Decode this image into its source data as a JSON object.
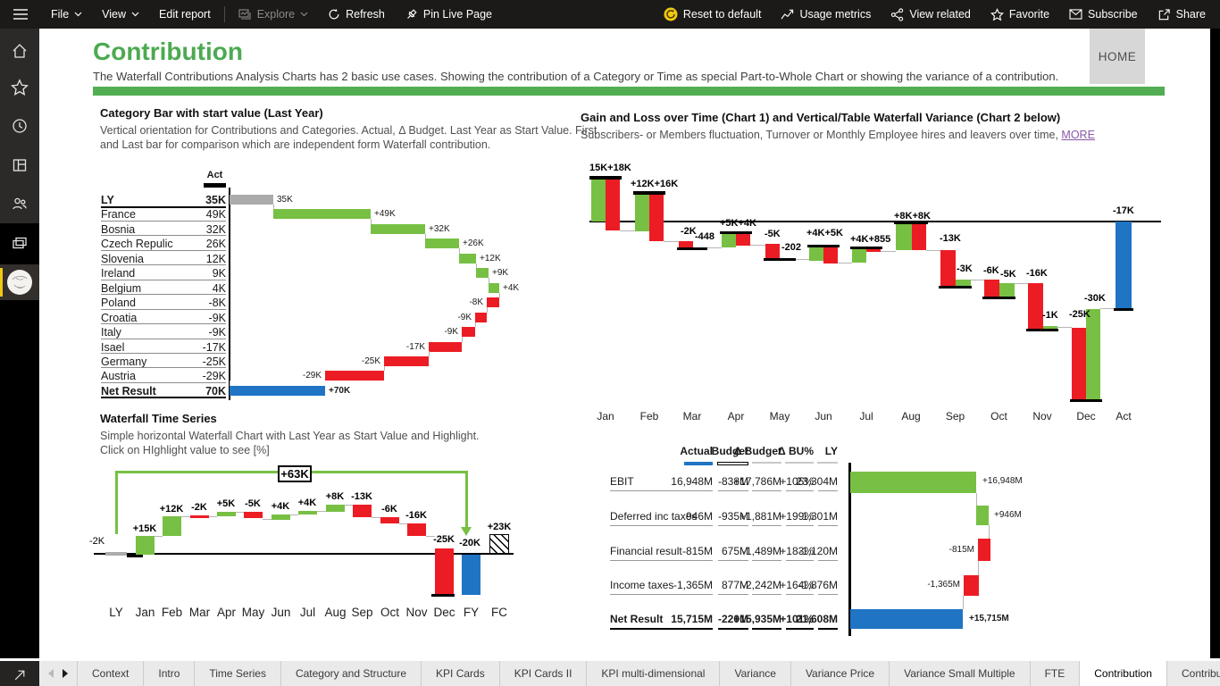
{
  "toolbar": {
    "file_label": "File",
    "view_label": "View",
    "edit_label": "Edit report",
    "explore_label": "Explore",
    "refresh_label": "Refresh",
    "pin_label": "Pin Live Page",
    "reset_label": "Reset to default",
    "usage_label": "Usage metrics",
    "related_label": "View related",
    "favorite_label": "Favorite",
    "subscribe_label": "Subscribe",
    "share_label": "Share"
  },
  "header": {
    "title": "Contribution",
    "subtitle": "The Waterfall Contributions Analysis Charts has 2 basic use cases. Showing the contribution of a Category or Time as special Part-to-Whole Chart or showing the variance of a contribution.",
    "home_label": "HOME"
  },
  "colors": {
    "green": "#77c043",
    "red": "#ec1c24",
    "blue": "#1f74c4",
    "gray": "#ababab",
    "accent_green": "#4caa50",
    "divider_green": "#52ae52",
    "yellow": "#f2c811",
    "link_purple": "#8a57a8"
  },
  "panels": {
    "category": {
      "title": "Category Bar with start value (Last Year)",
      "subtitle1": "Vertical orientation for Contributions and Categories. Actual, Δ Budget. Last Year as Start Value. First",
      "subtitle2": "and Last bar for comparison which are independent form Waterfall contribution.",
      "col_header": "Act"
    },
    "gainloss": {
      "title": "Gain and Loss over Time (Chart 1) and Vertical/Table Waterfall Variance (Chart 2 below)",
      "subtitle": "Subscribers- or Members fluctuation, Turnover or Monthly Employee hires and leavers over time, ",
      "more_label": "MORE"
    },
    "timeseries": {
      "title": "Waterfall Time Series",
      "subtitle1": "Simple horizontal Waterfall Chart with Last Year as Start Value and Highlight.",
      "subtitle2": "Click on HIghlight value to see [%]"
    }
  },
  "chart_data": [
    {
      "id": "category_waterfall",
      "type": "bar",
      "title": "Category Bar with start value (Last Year)",
      "categories": [
        "LY",
        "France",
        "Bosnia",
        "Czech Repulic",
        "Slovenia",
        "Ireland",
        "Belgium",
        "Poland",
        "Croatia",
        "Italy",
        "Isael",
        "Germany",
        "Austria",
        "Net Result"
      ],
      "values": [
        35,
        49,
        32,
        26,
        12,
        9,
        4,
        -8,
        -9,
        -9,
        -17,
        -25,
        -29,
        70
      ],
      "value_labels": [
        "35K",
        "49K",
        "32K",
        "26K",
        "12K",
        "9K",
        "4K",
        "-8K",
        "-9K",
        "-9K",
        "-17K",
        "-25K",
        "-29K",
        "70K"
      ],
      "bar_labels": [
        "35K",
        "+49K",
        "+32K",
        "+26K",
        "+12K",
        "+9K",
        "+4K",
        "-8K",
        "-9K",
        "-9K",
        "-17K",
        "-25K",
        "-29K",
        "+70K"
      ],
      "bar_colors": [
        "gray",
        "green",
        "green",
        "green",
        "green",
        "green",
        "green",
        "red",
        "red",
        "red",
        "red",
        "red",
        "red",
        "blue"
      ],
      "bold_rows": [
        0,
        13
      ],
      "col_header": "Act"
    },
    {
      "id": "gain_loss_monthly",
      "type": "waterfall-pairs",
      "months": [
        "Jan",
        "Feb",
        "Mar",
        "Apr",
        "May",
        "Jun",
        "Jul",
        "Aug",
        "Sep",
        "Oct",
        "Nov",
        "Dec",
        "Act"
      ],
      "labels": [
        [
          "15K+18K"
        ],
        [
          "+12K+16K"
        ],
        [
          "-2K",
          "-448"
        ],
        [
          "+5K+4K"
        ],
        [
          "-5K",
          "-202"
        ],
        [
          "+4K+5K"
        ],
        [
          "+4K+855"
        ],
        [
          "+8K+8K"
        ],
        [
          "-13K",
          "-3K"
        ],
        [
          "-6K",
          "-5K"
        ],
        [
          "-16K",
          "-1K"
        ],
        [
          "-25K",
          "-30K"
        ],
        [
          "-17K"
        ]
      ]
    },
    {
      "id": "time_series_waterfall",
      "type": "waterfall",
      "categories": [
        "LY",
        "Jan",
        "Feb",
        "Mar",
        "Apr",
        "May",
        "Jun",
        "Jul",
        "Aug",
        "Sep",
        "Oct",
        "Nov",
        "Dec",
        "FY",
        "FC"
      ],
      "values": [
        -2,
        15,
        12,
        -2,
        5,
        -5,
        4,
        4,
        8,
        -13,
        -6,
        -16,
        -25,
        -20,
        23
      ],
      "bar_labels": [
        "",
        "+15K",
        "+12K",
        "-2K",
        "+5K",
        "-5K",
        "+4K",
        "+4K",
        "+8K",
        "-13K",
        "-6K",
        "-16K",
        "-25K",
        "-20K",
        "+23K"
      ],
      "start_label": "-2K",
      "bridge_label": "+63K"
    },
    {
      "id": "variance_table",
      "type": "table",
      "columns": [
        "Actual",
        "Budget",
        "Δ Budget",
        "Δ BU%",
        "LY"
      ],
      "rows": [
        {
          "label": "EBIT",
          "actual": "16,948M",
          "budget": "-838M",
          "d_budget": "+17,786M",
          "d_bu": "+105%",
          "ly": "23,304M",
          "bold": false
        },
        {
          "label": "Deferred inc taxes",
          "actual": "946M",
          "budget": "-935M",
          "d_budget": "+1,881M",
          "d_bu": "+199%",
          "ly": "1,301M",
          "bold": false
        },
        {
          "label": "Financial result",
          "actual": "-815M",
          "budget": "675M",
          "d_budget": "-1,489M",
          "d_bu": "+183%",
          "ly": "-1,120M",
          "bold": false
        },
        {
          "label": "Income taxes",
          "actual": "-1,365M",
          "budget": "877M",
          "d_budget": "-2,242M",
          "d_bu": "+164%",
          "ly": "-1,876M",
          "bold": false
        },
        {
          "label": "Net Result",
          "actual": "15,715M",
          "budget": "-220M",
          "d_budget": "+15,935M",
          "d_bu": "+101%",
          "ly": "21,608M",
          "bold": true
        }
      ],
      "bar_labels": [
        "+16,948M",
        "+946M",
        "-815M",
        "-1,365M",
        "+15,715M"
      ],
      "bar_colors": [
        "green",
        "green",
        "red",
        "red",
        "blue"
      ]
    }
  ],
  "footer": {
    "tabs": [
      "Context",
      "Intro",
      "Time Series",
      "Category and Structure",
      "KPI Cards",
      "KPI Cards II",
      "KPI multi-dimensional",
      "Variance",
      "Variance Price",
      "Variance Small Multiple",
      "FTE",
      "Contribution",
      "Contribution II"
    ],
    "active_tab": "Contribution"
  }
}
